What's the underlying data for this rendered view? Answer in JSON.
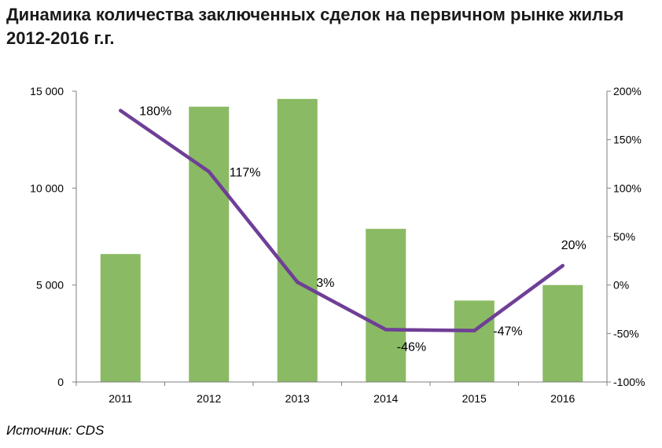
{
  "title": "Динамика количества заключенных сделок на первичном рынке жилья 2012-2016 г.г.",
  "source": "Источник: CDS",
  "colors": {
    "bar": "#8aba63",
    "line": "#6f3f97",
    "axis": "#7f7f7f"
  },
  "chart_data": {
    "type": "bar",
    "title": "Динамика количества заключенных сделок на первичном рынке жилья 2012-2016 г.г.",
    "categories": [
      "2011",
      "2012",
      "2013",
      "2014",
      "2015",
      "2016"
    ],
    "series": [
      {
        "values": [
          6600,
          14200,
          14600,
          7900,
          4200,
          5000
        ],
        "axis": "left",
        "render": "bar"
      },
      {
        "values": [
          180,
          117,
          3,
          -46,
          -47,
          20
        ],
        "axis": "right",
        "render": "line"
      }
    ],
    "line_labels": [
      "180%",
      "117%",
      "3%",
      "-46%",
      "-47%",
      "20%"
    ],
    "ylim_left": [
      0,
      15000
    ],
    "ylim_right": [
      -100,
      200
    ],
    "left_ticks": [
      0,
      5000,
      10000,
      15000
    ],
    "left_tick_labels": [
      "0",
      "5 000",
      "10 000",
      "15 000"
    ],
    "right_ticks": [
      -100,
      -50,
      0,
      50,
      100,
      150,
      200
    ],
    "right_tick_labels": [
      "-100%",
      "-50%",
      "0%",
      "50%",
      "100%",
      "150%",
      "200%"
    ],
    "grid": false,
    "legend": "none"
  }
}
